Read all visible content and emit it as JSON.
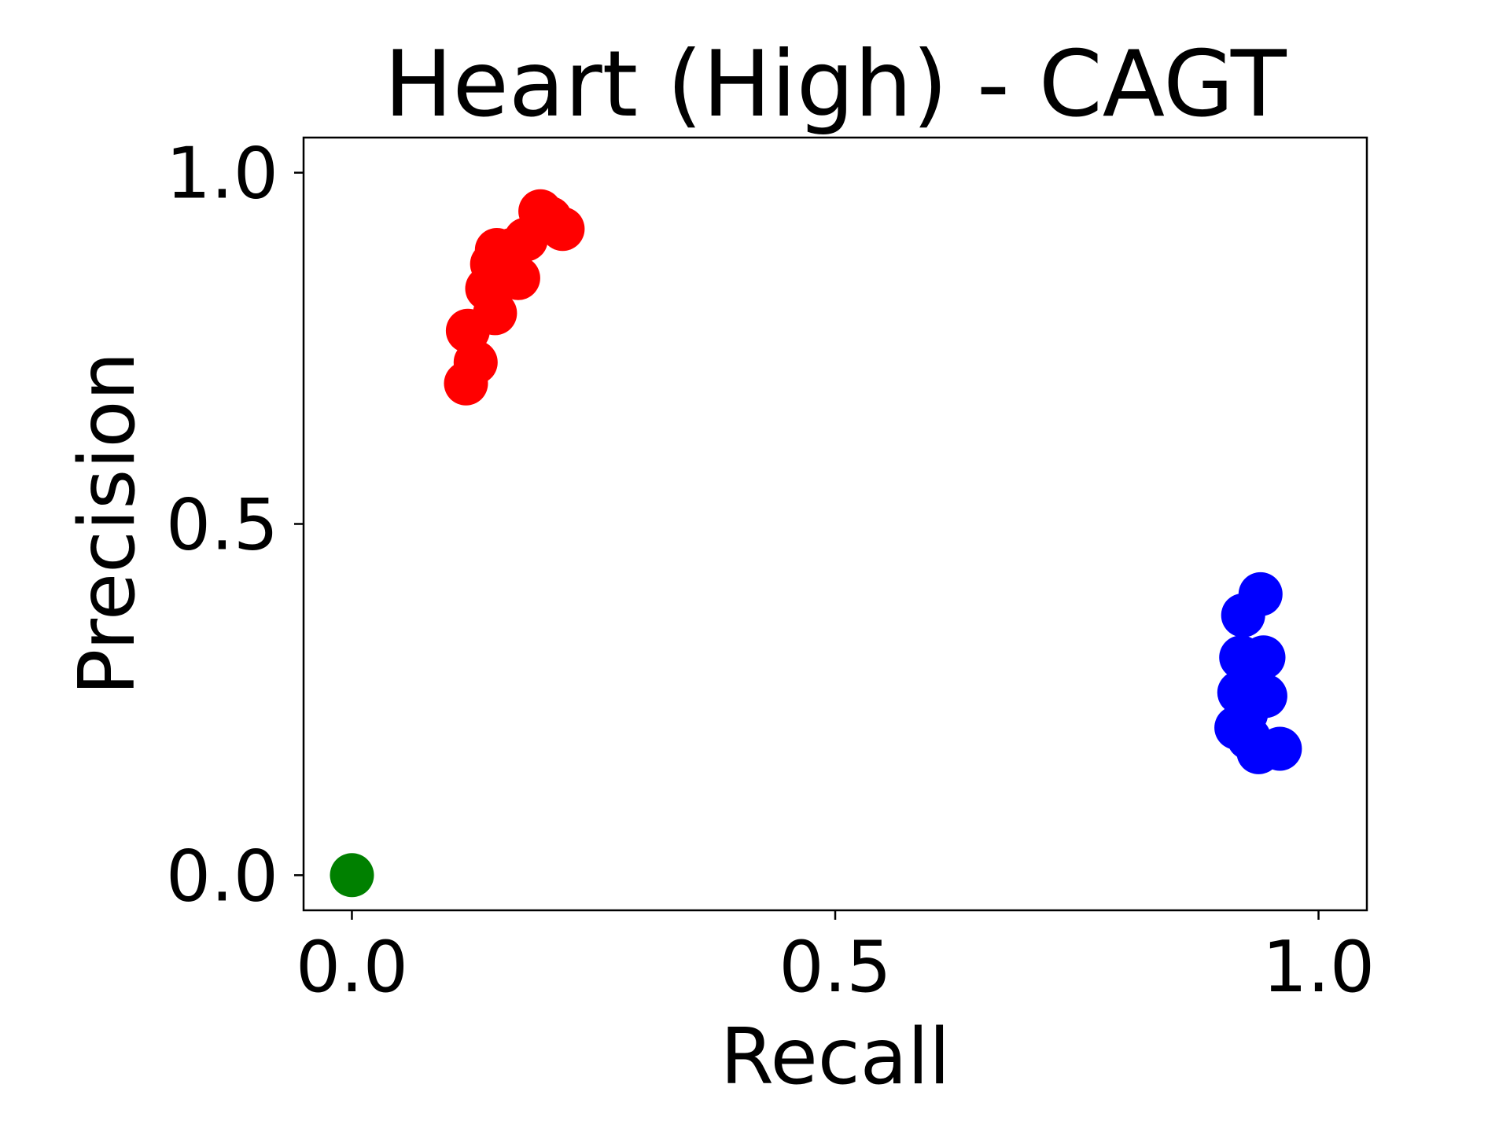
{
  "chart_data": {
    "type": "scatter",
    "title": "Heart (High) - CAGT",
    "xlabel": "Recall",
    "ylabel": "Precision",
    "xlim": [
      -0.05,
      1.05
    ],
    "ylim": [
      -0.05,
      1.05
    ],
    "xticks": [
      {
        "value": 0.0,
        "label": "0.0"
      },
      {
        "value": 0.5,
        "label": "0.5"
      },
      {
        "value": 1.0,
        "label": "1.0"
      }
    ],
    "yticks": [
      {
        "value": 0.0,
        "label": "0.0"
      },
      {
        "value": 0.5,
        "label": "0.5"
      },
      {
        "value": 1.0,
        "label": "1.0"
      }
    ],
    "grid": false,
    "legend": "none",
    "series": [
      {
        "color": "#ff0000",
        "points": [
          {
            "x": 0.12,
            "y": 0.775
          },
          {
            "x": 0.128,
            "y": 0.73
          },
          {
            "x": 0.118,
            "y": 0.7
          },
          {
            "x": 0.148,
            "y": 0.8
          },
          {
            "x": 0.14,
            "y": 0.835
          },
          {
            "x": 0.145,
            "y": 0.87
          },
          {
            "x": 0.15,
            "y": 0.89
          },
          {
            "x": 0.155,
            "y": 0.86
          },
          {
            "x": 0.165,
            "y": 0.89
          },
          {
            "x": 0.172,
            "y": 0.85
          },
          {
            "x": 0.18,
            "y": 0.905
          },
          {
            "x": 0.195,
            "y": 0.945
          },
          {
            "x": 0.205,
            "y": 0.935
          },
          {
            "x": 0.218,
            "y": 0.92
          }
        ]
      },
      {
        "color": "#0000ff",
        "points": [
          {
            "x": 0.94,
            "y": 0.4
          },
          {
            "x": 0.922,
            "y": 0.37
          },
          {
            "x": 0.92,
            "y": 0.31
          },
          {
            "x": 0.943,
            "y": 0.31
          },
          {
            "x": 0.93,
            "y": 0.28
          },
          {
            "x": 0.918,
            "y": 0.26
          },
          {
            "x": 0.933,
            "y": 0.25
          },
          {
            "x": 0.945,
            "y": 0.255
          },
          {
            "x": 0.925,
            "y": 0.23
          },
          {
            "x": 0.915,
            "y": 0.21
          },
          {
            "x": 0.928,
            "y": 0.195
          },
          {
            "x": 0.938,
            "y": 0.175
          },
          {
            "x": 0.96,
            "y": 0.18
          }
        ]
      },
      {
        "color": "#008000",
        "points": [
          {
            "x": 0.0,
            "y": 0.0
          }
        ]
      }
    ]
  }
}
